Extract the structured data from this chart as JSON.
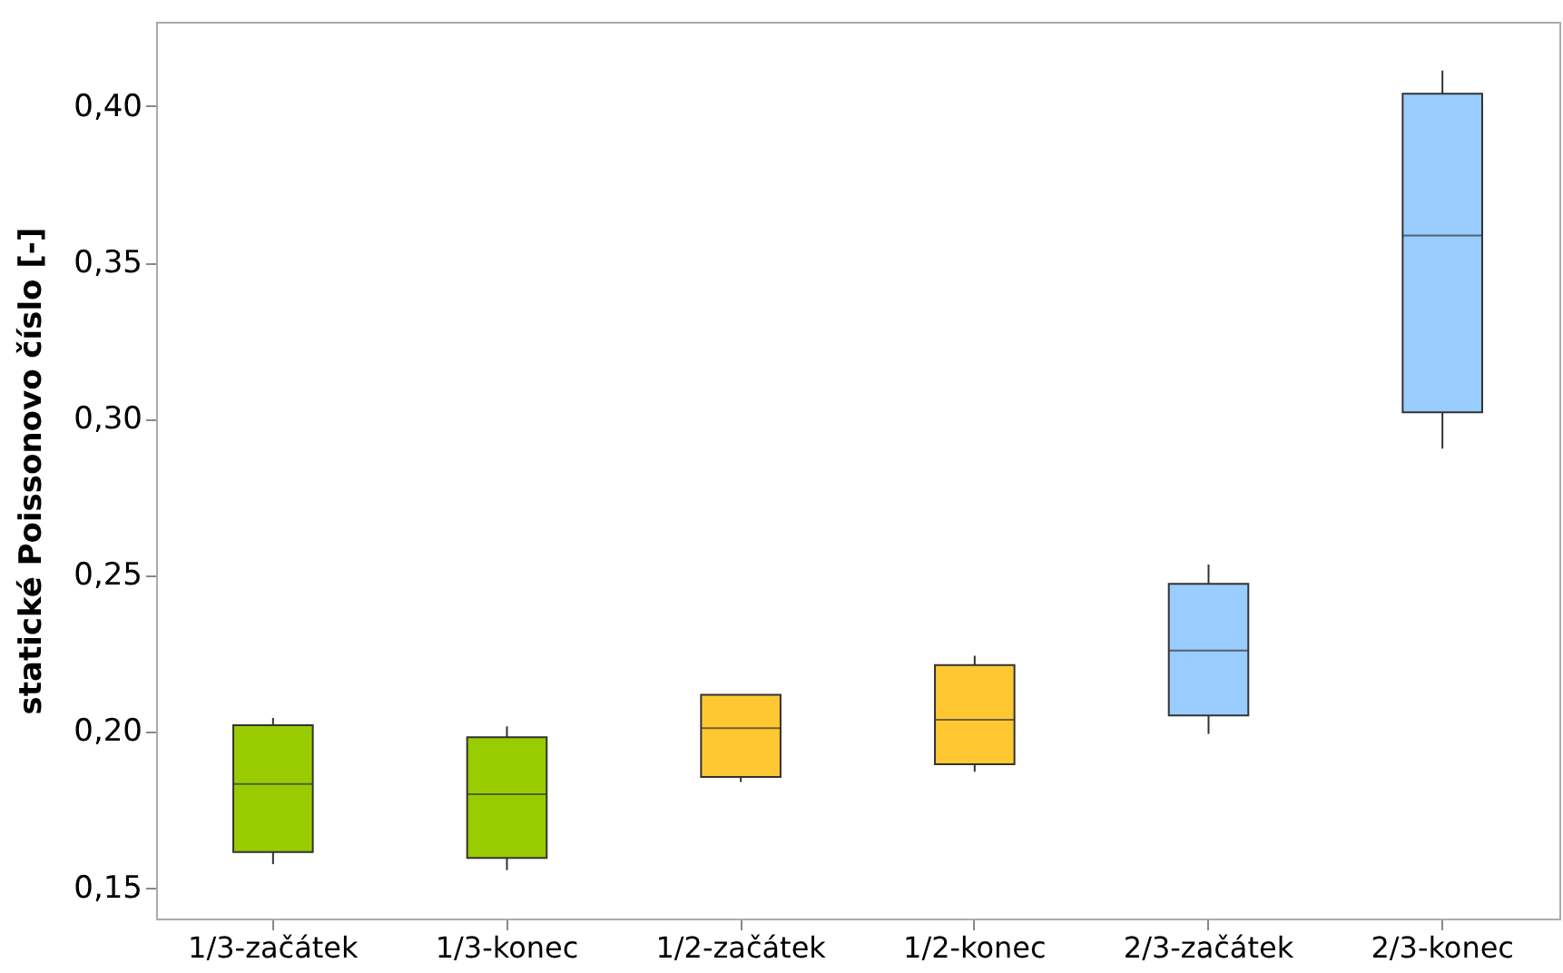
{
  "chart_data": {
    "type": "box",
    "ylabel": "statické Poissonovo číslo [-]",
    "categories": [
      "1/3-začátek",
      "1/3-konec",
      "1/2-začátek",
      "1/2-konec",
      "2/3-začátek",
      "2/3-konec"
    ],
    "colors": [
      "#99cc00",
      "#99cc00",
      "#ffc833",
      "#ffc833",
      "#99ccff",
      "#99ccff"
    ],
    "boxes": [
      {
        "low": 0.1574,
        "q1": 0.1613,
        "median": 0.1831,
        "q3": 0.2019,
        "high": 0.2042
      },
      {
        "low": 0.1555,
        "q1": 0.1594,
        "median": 0.1798,
        "q3": 0.198,
        "high": 0.2015
      },
      {
        "low": 0.1837,
        "q1": 0.1853,
        "median": 0.2009,
        "q3": 0.2116,
        "high": 0.2116
      },
      {
        "low": 0.187,
        "q1": 0.1894,
        "median": 0.2036,
        "q3": 0.2211,
        "high": 0.2241
      },
      {
        "low": 0.1991,
        "q1": 0.205,
        "median": 0.2258,
        "q3": 0.2471,
        "high": 0.2533
      },
      {
        "low": 0.2904,
        "q1": 0.302,
        "median": 0.3586,
        "q3": 0.404,
        "high": 0.4114
      }
    ],
    "ylim": [
      0.14,
      0.427
    ],
    "yticks": [
      {
        "value": 0.15,
        "label": "0,15"
      },
      {
        "value": 0.2,
        "label": "0,20"
      },
      {
        "value": 0.25,
        "label": "0,25"
      },
      {
        "value": 0.3,
        "label": "0,30"
      },
      {
        "value": 0.35,
        "label": "0,35"
      },
      {
        "value": 0.4,
        "label": "0,40"
      }
    ],
    "grid": false
  }
}
